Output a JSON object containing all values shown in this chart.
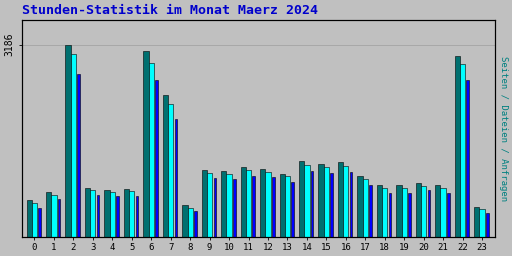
{
  "title": "Stunden-Statistik im Monat Maerz 2024",
  "ylabel_right": "Seiten / Dateien / Anfragen",
  "ytick_label": "3186",
  "ylim": [
    0,
    3600
  ],
  "ytick_val": 3186,
  "hours": [
    0,
    1,
    2,
    3,
    4,
    5,
    6,
    7,
    8,
    9,
    10,
    11,
    12,
    13,
    14,
    15,
    16,
    17,
    18,
    19,
    20,
    21,
    22,
    23
  ],
  "seiten": [
    620,
    750,
    3186,
    820,
    790,
    800,
    3080,
    2350,
    530,
    1120,
    1100,
    1160,
    1130,
    1050,
    1260,
    1220,
    1240,
    1010,
    870,
    870,
    900,
    870,
    3000,
    500
  ],
  "dateien": [
    560,
    700,
    3040,
    780,
    755,
    765,
    2890,
    2200,
    490,
    1070,
    1050,
    1110,
    1085,
    1010,
    1200,
    1160,
    1185,
    960,
    820,
    820,
    855,
    820,
    2870,
    460
  ],
  "anfragen": [
    490,
    630,
    2700,
    700,
    680,
    690,
    2600,
    1960,
    440,
    980,
    960,
    1010,
    990,
    920,
    1090,
    1060,
    1080,
    870,
    740,
    740,
    775,
    740,
    2600,
    400
  ],
  "color_seiten": "#007070",
  "color_dateien": "#00ffff",
  "color_anfragen": "#0000ff",
  "bg_color": "#c0c0c0",
  "plot_bg": "#c0c0c0",
  "title_color": "#0000cc",
  "right_label_color": "#008080",
  "bar_width": 0.27,
  "bar_edge_color": "#000000",
  "grid_color": "#a8a8a8"
}
